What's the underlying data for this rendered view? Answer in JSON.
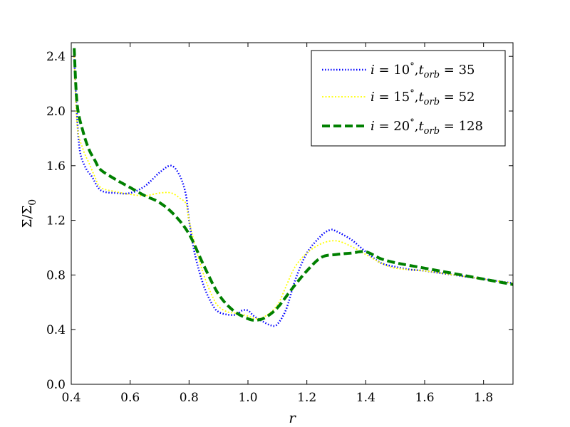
{
  "chart_data": {
    "type": "line",
    "xlabel": "r",
    "ylabel": "Σ/Σ0",
    "xlim": [
      0.4,
      1.9
    ],
    "ylim": [
      0.0,
      2.5
    ],
    "xticks": [
      "0.4",
      "0.6",
      "0.8",
      "1.0",
      "1.2",
      "1.4",
      "1.6",
      "1.8"
    ],
    "yticks": [
      "0.0",
      "0.4",
      "0.8",
      "1.2",
      "1.6",
      "2.0",
      "2.4"
    ],
    "grid": false,
    "legend": "top-right",
    "series": [
      {
        "name": "i = 10°, t_orb = 35",
        "legend_parts": {
          "a": "i",
          "b": "10",
          "c": "t",
          "d": "orb",
          "e": "35"
        },
        "color": "#0000ff",
        "style": "dotted",
        "x": [
          0.41,
          0.42,
          0.43,
          0.45,
          0.47,
          0.5,
          0.55,
          0.6,
          0.65,
          0.7,
          0.74,
          0.77,
          0.79,
          0.8,
          0.82,
          0.85,
          0.88,
          0.9,
          0.93,
          0.96,
          0.98,
          1.0,
          1.02,
          1.05,
          1.08,
          1.1,
          1.13,
          1.16,
          1.2,
          1.25,
          1.28,
          1.3,
          1.35,
          1.4,
          1.45,
          1.5,
          1.55,
          1.6,
          1.7,
          1.8,
          1.9
        ],
        "y": [
          2.4,
          1.95,
          1.7,
          1.58,
          1.52,
          1.42,
          1.4,
          1.4,
          1.45,
          1.55,
          1.6,
          1.52,
          1.38,
          1.2,
          0.95,
          0.72,
          0.58,
          0.53,
          0.51,
          0.51,
          0.54,
          0.54,
          0.5,
          0.46,
          0.43,
          0.44,
          0.55,
          0.76,
          0.96,
          1.09,
          1.13,
          1.12,
          1.06,
          0.97,
          0.89,
          0.86,
          0.84,
          0.83,
          0.8,
          0.77,
          0.74
        ]
      },
      {
        "name": "i = 15°, t_orb = 52",
        "legend_parts": {
          "a": "i",
          "b": "15",
          "c": "t",
          "d": "orb",
          "e": "52"
        },
        "color": "#ffff00",
        "style": "marker",
        "x": [
          0.41,
          0.42,
          0.44,
          0.46,
          0.48,
          0.5,
          0.55,
          0.6,
          0.65,
          0.7,
          0.74,
          0.77,
          0.79,
          0.8,
          0.82,
          0.85,
          0.88,
          0.9,
          0.93,
          0.96,
          1.0,
          1.03,
          1.06,
          1.1,
          1.13,
          1.16,
          1.2,
          1.25,
          1.3,
          1.35,
          1.4,
          1.45,
          1.5,
          1.6,
          1.7,
          1.8,
          1.9
        ],
        "y": [
          2.4,
          1.9,
          1.72,
          1.62,
          1.52,
          1.44,
          1.41,
          1.39,
          1.38,
          1.4,
          1.4,
          1.36,
          1.32,
          1.2,
          1.02,
          0.8,
          0.64,
          0.57,
          0.53,
          0.52,
          0.5,
          0.48,
          0.5,
          0.58,
          0.72,
          0.86,
          0.96,
          1.03,
          1.05,
          1.01,
          0.95,
          0.89,
          0.85,
          0.83,
          0.8,
          0.77,
          0.74
        ]
      },
      {
        "name": "i = 20°, t_orb = 128",
        "legend_parts": {
          "a": "i",
          "b": "20",
          "c": "t",
          "d": "orb",
          "e": "128"
        },
        "color": "#008000",
        "style": "dashed",
        "x": [
          0.41,
          0.42,
          0.44,
          0.46,
          0.48,
          0.5,
          0.55,
          0.6,
          0.65,
          0.7,
          0.75,
          0.8,
          0.85,
          0.9,
          0.95,
          1.0,
          1.03,
          1.06,
          1.1,
          1.15,
          1.2,
          1.25,
          1.3,
          1.35,
          1.4,
          1.45,
          1.5,
          1.6,
          1.7,
          1.8,
          1.9
        ],
        "y": [
          2.46,
          2.05,
          1.85,
          1.72,
          1.64,
          1.57,
          1.5,
          1.44,
          1.38,
          1.33,
          1.24,
          1.1,
          0.87,
          0.66,
          0.54,
          0.48,
          0.47,
          0.49,
          0.56,
          0.7,
          0.83,
          0.93,
          0.95,
          0.96,
          0.97,
          0.92,
          0.89,
          0.85,
          0.81,
          0.77,
          0.73
        ]
      }
    ]
  }
}
